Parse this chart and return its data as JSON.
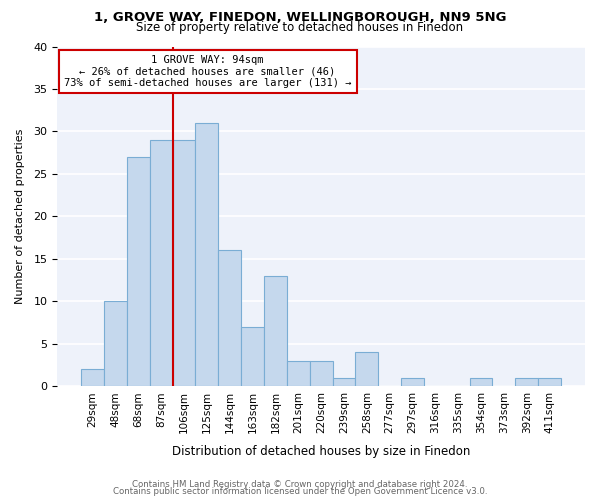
{
  "title1": "1, GROVE WAY, FINEDON, WELLINGBOROUGH, NN9 5NG",
  "title2": "Size of property relative to detached houses in Finedon",
  "xlabel": "Distribution of detached houses by size in Finedon",
  "ylabel": "Number of detached properties",
  "bar_labels": [
    "29sqm",
    "48sqm",
    "68sqm",
    "87sqm",
    "106sqm",
    "125sqm",
    "144sqm",
    "163sqm",
    "182sqm",
    "201sqm",
    "220sqm",
    "239sqm",
    "258sqm",
    "277sqm",
    "297sqm",
    "316sqm",
    "335sqm",
    "354sqm",
    "373sqm",
    "392sqm",
    "411sqm"
  ],
  "bar_values": [
    2,
    10,
    27,
    29,
    29,
    31,
    16,
    7,
    13,
    3,
    3,
    1,
    4,
    0,
    1,
    0,
    0,
    1,
    0,
    1,
    1
  ],
  "bar_color": "#c5d8ed",
  "bar_edge_color": "#7aadd4",
  "bg_color": "#eef2fa",
  "grid_color": "#ffffff",
  "vline_x_index": 3.5,
  "vline_color": "#cc0000",
  "annotation_line1": "1 GROVE WAY: 94sqm",
  "annotation_line2": "← 26% of detached houses are smaller (46)",
  "annotation_line3": "73% of semi-detached houses are larger (131) →",
  "ylim": [
    0,
    40
  ],
  "yticks": [
    0,
    5,
    10,
    15,
    20,
    25,
    30,
    35,
    40
  ],
  "footer1": "Contains HM Land Registry data © Crown copyright and database right 2024.",
  "footer2": "Contains public sector information licensed under the Open Government Licence v3.0."
}
